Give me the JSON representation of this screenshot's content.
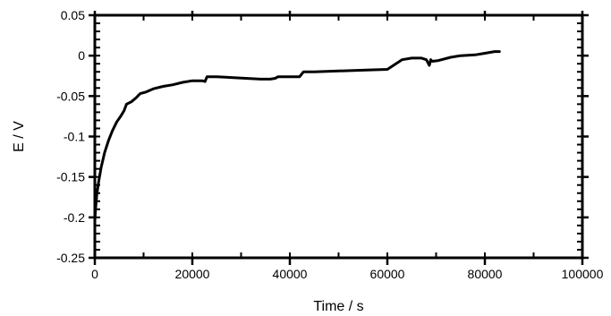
{
  "chart_data": {
    "type": "line",
    "xlabel": "Time / s",
    "ylabel": "E / V",
    "xlim": [
      0,
      100000
    ],
    "ylim": [
      -0.25,
      0.05
    ],
    "x_ticks": [
      0,
      20000,
      40000,
      60000,
      80000,
      100000
    ],
    "x_tick_labels": [
      "0",
      "20000",
      "40000",
      "60000",
      "80000",
      "100000"
    ],
    "y_ticks": [
      0.05,
      0,
      -0.05,
      -0.1,
      -0.15,
      -0.2,
      -0.25
    ],
    "y_tick_labels": [
      "0.05",
      "0",
      "-0.05",
      "-0.1",
      "-0.15",
      "-0.2",
      "-0.25"
    ],
    "x_minor_step": 10000,
    "y_minor_step": 0.01,
    "grid": false,
    "legend": "none",
    "line_color": "#000000",
    "series": [
      {
        "x": [
          0,
          150,
          400,
          800,
          1300,
          2000,
          2800,
          3600,
          4500,
          5300,
          6000,
          6500,
          7500,
          8500,
          9300,
          10500,
          12000,
          14000,
          16000,
          18000,
          20000,
          22000,
          22600,
          23000,
          25000,
          28000,
          31000,
          34000,
          36000,
          37000,
          37600,
          42000,
          42800,
          45000,
          50000,
          55000,
          60000,
          61500,
          63000,
          65000,
          67000,
          68000,
          68600,
          68900,
          69200,
          70500,
          73000,
          75000,
          78000,
          80000,
          82000,
          83000
        ],
        "y": [
          -0.205,
          -0.19,
          -0.172,
          -0.155,
          -0.138,
          -0.12,
          -0.105,
          -0.093,
          -0.082,
          -0.075,
          -0.068,
          -0.06,
          -0.057,
          -0.052,
          -0.047,
          -0.045,
          -0.041,
          -0.038,
          -0.036,
          -0.033,
          -0.031,
          -0.031,
          -0.032,
          -0.026,
          -0.026,
          -0.027,
          -0.028,
          -0.029,
          -0.029,
          -0.028,
          -0.026,
          -0.026,
          -0.02,
          -0.02,
          -0.019,
          -0.018,
          -0.017,
          -0.011,
          -0.005,
          -0.003,
          -0.003,
          -0.005,
          -0.012,
          -0.005,
          -0.007,
          -0.006,
          -0.002,
          0.0,
          0.001,
          0.003,
          0.005,
          0.005
        ]
      }
    ]
  }
}
